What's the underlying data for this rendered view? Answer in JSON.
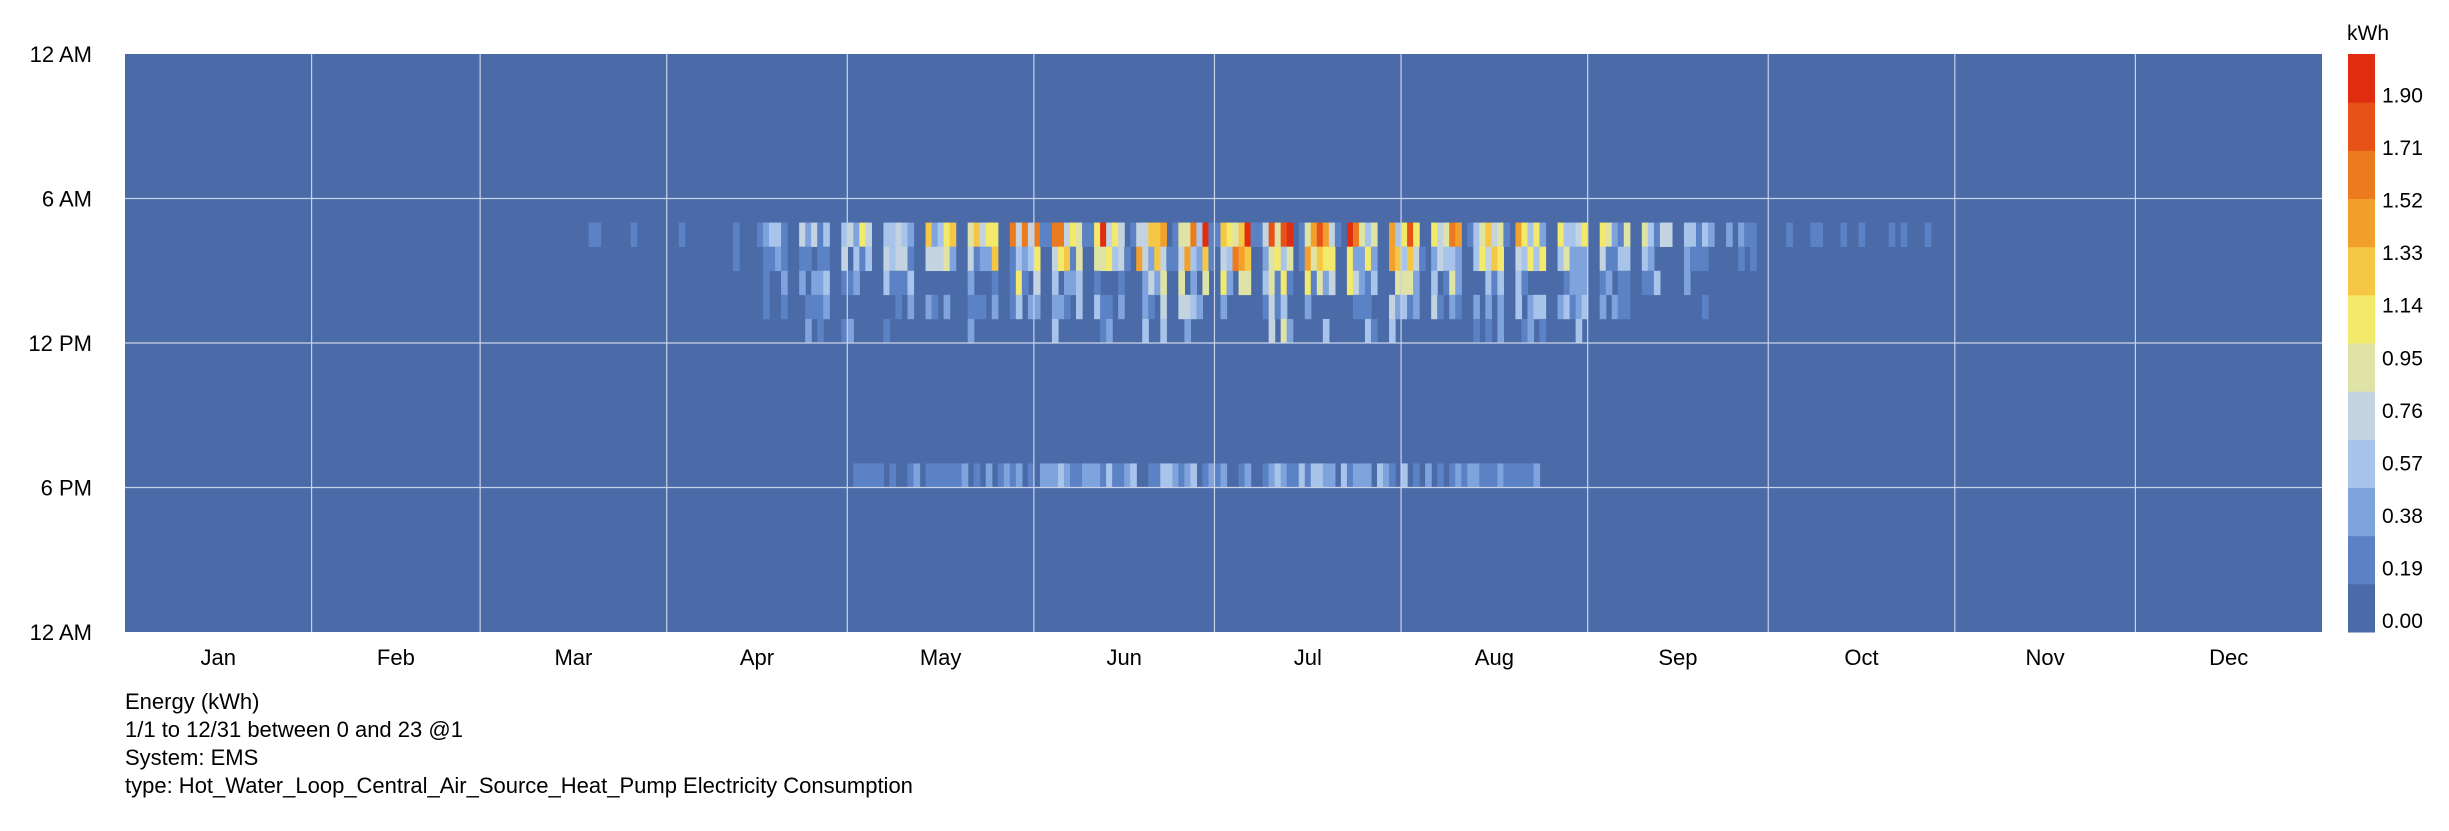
{
  "chart_data": {
    "type": "heatmap",
    "title": "",
    "y_tick_labels": [
      "12 AM",
      "6 AM",
      "12 PM",
      "6 PM",
      "12 AM"
    ],
    "x_tick_labels": [
      "Jan",
      "Feb",
      "Mar",
      "Apr",
      "May",
      "Jun",
      "Jul",
      "Aug",
      "Sep",
      "Oct",
      "Nov",
      "Dec"
    ],
    "x_range_days": [
      1,
      365
    ],
    "y_range_hours": [
      0,
      24
    ],
    "grid": true,
    "colorbar": {
      "unit_label": "kWh",
      "min": 0.0,
      "max": 2.09,
      "tick_values": [
        "0.00",
        "0.19",
        "0.38",
        "0.57",
        "0.76",
        "0.95",
        "1.14",
        "1.33",
        "1.52",
        "1.71",
        "1.90"
      ],
      "colors": [
        "#4a6ba8",
        "#5b82c4",
        "#7fa3dc",
        "#a8c4ea",
        "#c3d3e0",
        "#dfe3a6",
        "#f3e96a",
        "#f6c744",
        "#f2a02c",
        "#ec7a1e",
        "#e75317",
        "#e02d10"
      ]
    },
    "background_value_kwh": 0.0,
    "active_season_days": [
      95,
      275
    ],
    "description_of_pattern": "Peak consumption concentrated 7-11 AM from mid-April to late September, highest early morning 8 AM values (~1.9-2.0 kWh) June-August; smaller evening peak near 6 PM May-August"
  },
  "info": {
    "line1": "Energy (kWh)",
    "line2": "1/1 to 12/31 between 0 and 23 @1",
    "line3": "System: EMS",
    "line4": "type: Hot_Water_Loop_Central_Air_Source_Heat_Pump Electricity Consumption"
  }
}
